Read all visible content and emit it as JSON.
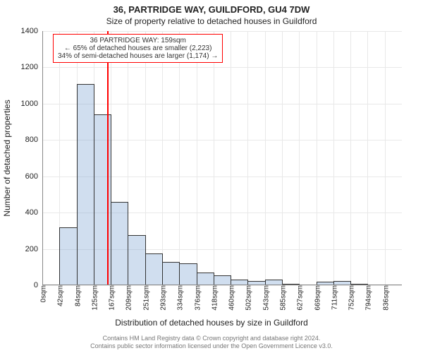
{
  "title": "36, PARTRIDGE WAY, GUILDFORD, GU4 7DW",
  "subtitle": "Size of property relative to detached houses in Guildford",
  "chart": {
    "type": "histogram",
    "ylabel": "Number of detached properties",
    "xlabel": "Distribution of detached houses by size in Guildford",
    "ylim": [
      0,
      1400
    ],
    "ytick_step": 200,
    "x_bin_width": 42,
    "x_tick_labels": [
      "0sqm",
      "42sqm",
      "84sqm",
      "125sqm",
      "167sqm",
      "209sqm",
      "251sqm",
      "293sqm",
      "334sqm",
      "376sqm",
      "418sqm",
      "460sqm",
      "502sqm",
      "543sqm",
      "585sqm",
      "627sqm",
      "669sqm",
      "711sqm",
      "752sqm",
      "794sqm",
      "836sqm"
    ],
    "values": [
      0,
      320,
      1110,
      940,
      460,
      275,
      175,
      130,
      120,
      70,
      55,
      30,
      25,
      30,
      5,
      0,
      20,
      22,
      5,
      0,
      0
    ],
    "bar_fill_color": "#c9dbf0",
    "bar_fill_opacity": 0.55,
    "bar_border_color": "#333333",
    "grid_color": "#e8e8e8",
    "axis_color": "#888888",
    "background_color": "#ffffff",
    "label_fontsize": 12,
    "tick_fontsize": 10,
    "title_fontsize": 13
  },
  "marker": {
    "x_value": 159,
    "color": "#ff0000",
    "callout_lines": [
      "36 PARTRIDGE WAY: 159sqm",
      "← 65% of detached houses are smaller (2,223)",
      "34% of semi-detached houses are larger (1,174) →"
    ]
  },
  "footer": {
    "line1": "Contains HM Land Registry data © Crown copyright and database right 2024.",
    "line2": "Contains public sector information licensed under the Open Government Licence v3.0."
  }
}
